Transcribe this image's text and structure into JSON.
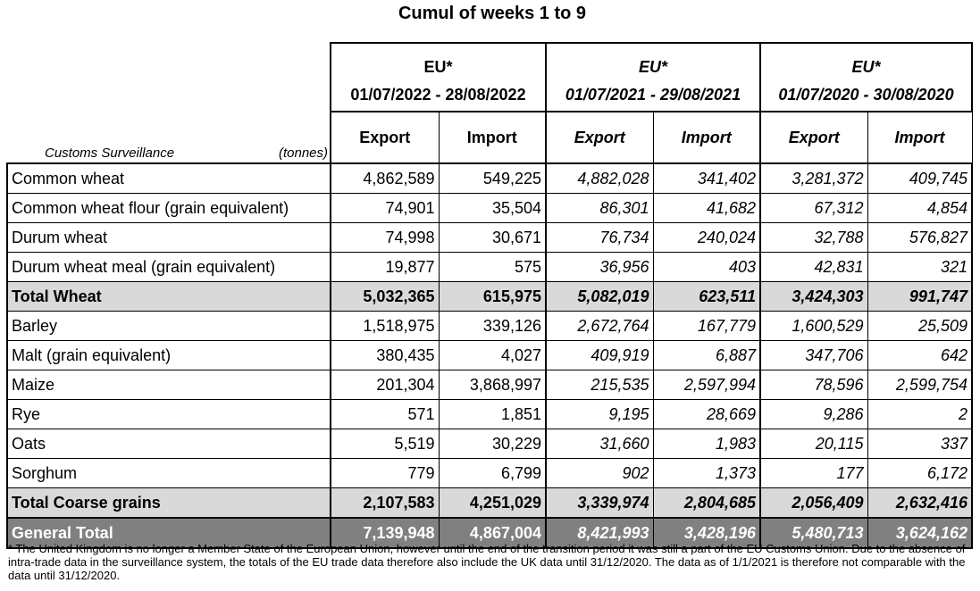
{
  "title": "Cumul of weeks 1 to 9",
  "units": "(tonnes)",
  "source_label": "Customs Surveillance",
  "periods": [
    {
      "group": "EU*",
      "dates": "01/07/2022 - 28/08/2022",
      "export": "Export",
      "import": "Import"
    },
    {
      "group": "EU*",
      "dates": "01/07/2021 - 29/08/2021",
      "export": "Export",
      "import": "Import"
    },
    {
      "group": "EU*",
      "dates": "01/07/2020 - 30/08/2020",
      "export": "Export",
      "import": "Import"
    }
  ],
  "rows": [
    {
      "label": "Common wheat",
      "values": [
        "4,862,589",
        "549,225",
        "4,882,028",
        "341,402",
        "3,281,372",
        "409,745"
      ]
    },
    {
      "label": "Common wheat flour (grain equivalent)",
      "values": [
        "74,901",
        "35,504",
        "86,301",
        "41,682",
        "67,312",
        "4,854"
      ]
    },
    {
      "label": "Durum wheat",
      "values": [
        "74,998",
        "30,671",
        "76,734",
        "240,024",
        "32,788",
        "576,827"
      ]
    },
    {
      "label": "Durum wheat meal (grain equivalent)",
      "values": [
        "19,877",
        "575",
        "36,956",
        "403",
        "42,831",
        "321"
      ]
    },
    {
      "label": "Total Wheat",
      "values": [
        "5,032,365",
        "615,975",
        "5,082,019",
        "623,511",
        "3,424,303",
        "991,747"
      ]
    },
    {
      "label": "Barley",
      "values": [
        "1,518,975",
        "339,126",
        "2,672,764",
        "167,779",
        "1,600,529",
        "25,509"
      ]
    },
    {
      "label": "Malt (grain equivalent)",
      "values": [
        "380,435",
        "4,027",
        "409,919",
        "6,887",
        "347,706",
        "642"
      ]
    },
    {
      "label": "Maize",
      "values": [
        "201,304",
        "3,868,997",
        "215,535",
        "2,597,994",
        "78,596",
        "2,599,754"
      ]
    },
    {
      "label": "Rye",
      "values": [
        "571",
        "1,851",
        "9,195",
        "28,669",
        "9,286",
        "2"
      ]
    },
    {
      "label": "Oats",
      "values": [
        "5,519",
        "30,229",
        "31,660",
        "1,983",
        "20,115",
        "337"
      ]
    },
    {
      "label": "Sorghum",
      "values": [
        "779",
        "6,799",
        "902",
        "1,373",
        "177",
        "6,172"
      ]
    },
    {
      "label": "Total Coarse grains",
      "values": [
        "2,107,583",
        "4,251,029",
        "3,339,974",
        "2,804,685",
        "2,056,409",
        "2,632,416"
      ]
    },
    {
      "label": "General Total",
      "values": [
        "7,139,948",
        "4,867,004",
        "8,421,993",
        "3,428,196",
        "5,480,713",
        "3,624,162"
      ]
    }
  ],
  "footnote": "* The United Kingdom is no longer a Member State of the European Union, however until the end of the transition period it was still a part of the EU Customs Union. Due to the absence of intra-trade data in the surveillance system, the totals of the EU trade data  therefore also include the UK data until 31/12/2020. The data as of 1/1/2021 is therefore not comparable with the data until 31/12/2020."
}
